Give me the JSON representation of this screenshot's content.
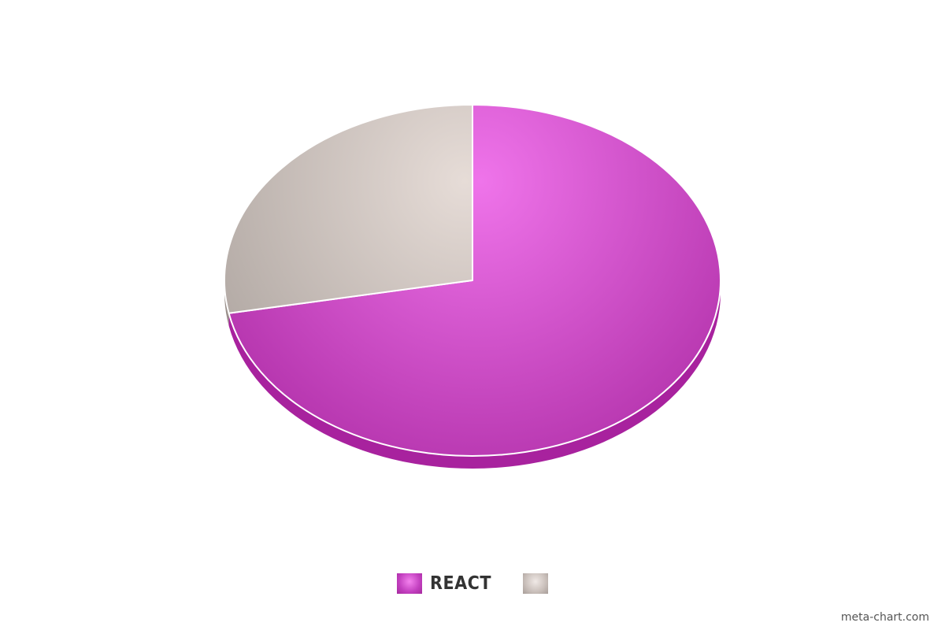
{
  "chart_data": {
    "type": "pie",
    "title": "",
    "slices": [
      {
        "label": "REACT",
        "value": 72,
        "color": "#c23fbf"
      },
      {
        "label": "",
        "value": 28,
        "color": "#cfc4bf"
      }
    ]
  },
  "legend": {
    "items": [
      {
        "label": "REACT",
        "color": "#c23fbf"
      },
      {
        "label": "",
        "color": "#cfc4bf"
      }
    ]
  },
  "watermark": "meta-chart.com"
}
